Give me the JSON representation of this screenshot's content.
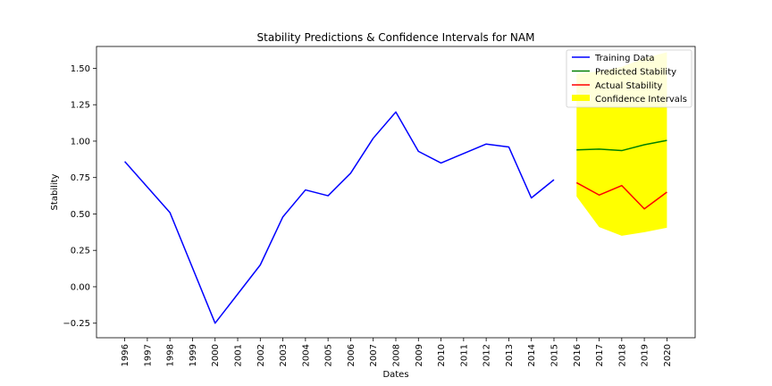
{
  "chart_data": {
    "type": "line",
    "title": "Stability Predictions & Confidence Intervals for NAM",
    "xlabel": "Dates",
    "ylabel": "Stability",
    "x_ticks": [
      "1996",
      "1997",
      "1998",
      "1999",
      "2000",
      "2001",
      "2002",
      "2003",
      "2004",
      "2005",
      "2006",
      "2007",
      "2008",
      "2009",
      "2010",
      "2011",
      "2012",
      "2013",
      "2014",
      "2015",
      "2016",
      "2017",
      "2018",
      "2019",
      "2020"
    ],
    "y_ticks": [
      "−0.25",
      "0.00",
      "0.25",
      "0.50",
      "0.75",
      "1.00",
      "1.25",
      "1.50"
    ],
    "xlim": [
      1994.75,
      2021.25
    ],
    "ylim": [
      -0.35,
      1.65
    ],
    "grid": false,
    "legend_position": "top-right",
    "series": [
      {
        "name": "Training Data",
        "color": "#0000ff",
        "x": [
          1996,
          1998,
          2000,
          2002,
          2003,
          2004,
          2005,
          2006,
          2007,
          2008,
          2009,
          2010,
          2011,
          2012,
          2013,
          2014,
          2015
        ],
        "y": [
          0.86,
          0.51,
          -0.25,
          0.15,
          0.48,
          0.665,
          0.625,
          0.78,
          1.02,
          1.2,
          0.93,
          0.85,
          0.915,
          0.98,
          0.96,
          0.61,
          0.735
        ]
      },
      {
        "name": "Predicted Stability",
        "color": "#008000",
        "x": [
          2016,
          2017,
          2018,
          2019,
          2020
        ],
        "y": [
          0.94,
          0.945,
          0.935,
          0.975,
          1.005
        ]
      },
      {
        "name": "Actual Stability",
        "color": "#ff0000",
        "x": [
          2016,
          2017,
          2018,
          2019,
          2020
        ],
        "y": [
          0.715,
          0.63,
          0.695,
          0.535,
          0.65
        ]
      }
    ],
    "confidence_interval": {
      "name": "Confidence Intervals",
      "color": "#ffff00",
      "x": [
        2016,
        2017,
        2018,
        2019,
        2020
      ],
      "lower": [
        0.62,
        0.41,
        0.35,
        0.375,
        0.405
      ],
      "upper": [
        1.46,
        1.48,
        1.51,
        1.57,
        1.61
      ]
    }
  }
}
